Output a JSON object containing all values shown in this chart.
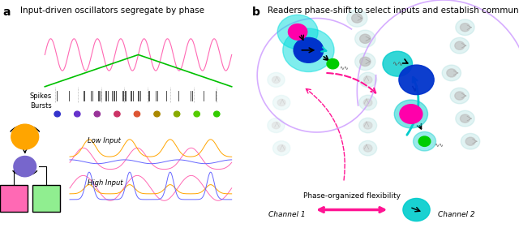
{
  "fig_width": 6.4,
  "fig_height": 2.81,
  "dpi": 100,
  "bg_color": "#ffffff",
  "panel_a_title": "Input-driven oscillators segregate by phase",
  "panel_b_title": "Readers phase-shift to select inputs and establish communication channels",
  "panel_a_label": "a",
  "panel_b_label": "b",
  "label_fontsize": 10,
  "title_fontsize": 7.5,
  "theta_color": "#ff69b4",
  "input_color": "#90ee90",
  "osc_pink": "#ff69b4",
  "osc_green": "#00c000",
  "osc_orange": "#ffa500",
  "osc_blue": "#6666ff",
  "osc_purple": "#cc44cc",
  "cyan_color": "#00cccc",
  "magenta_color": "#ff00aa",
  "blue_dark": "#0000cc",
  "green_dark": "#00aa00",
  "arrow_color": "#555555",
  "channel1_color": "#ff1493",
  "channel2_color": "#ff1493",
  "bottom_text": "Phase-organized flexibility",
  "channel1_label": "Channel 1",
  "channel2_label": "Channel 2"
}
